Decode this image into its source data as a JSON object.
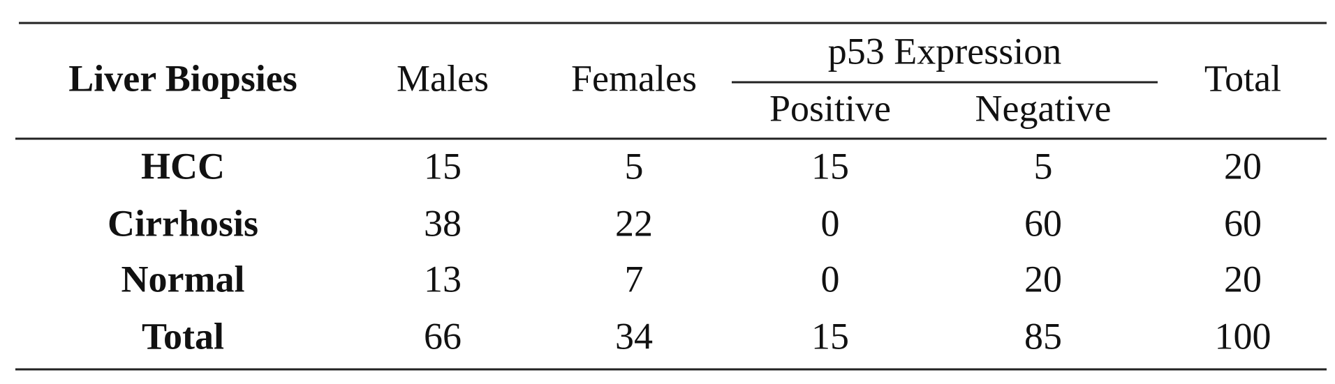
{
  "table": {
    "header": {
      "row_label": "Liver Biopsies",
      "males": "Males",
      "females": "Females",
      "group": "p53 Expression",
      "positive": "Positive",
      "negative": "Negative",
      "total": "Total"
    },
    "rows": [
      [
        "HCC",
        15,
        5,
        15,
        5,
        20
      ],
      [
        "Cirrhosis",
        38,
        22,
        0,
        60,
        60
      ],
      [
        "Normal",
        13,
        7,
        0,
        20,
        20
      ],
      [
        "Total",
        66,
        34,
        15,
        85,
        100
      ]
    ]
  }
}
